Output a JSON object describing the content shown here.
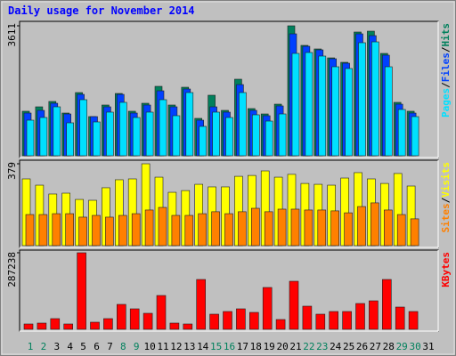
{
  "title": "Daily usage for November 2014",
  "chart_data": [
    {
      "type": "bar",
      "ylim": [
        0,
        3611
      ],
      "yticks": [
        3611
      ],
      "series": [
        {
          "name": "Hits",
          "color": "#00805c",
          "values": [
            1237,
            1360,
            1509,
            1187,
            1756,
            1088,
            1410,
            1731,
            1237,
            1459,
            1929,
            1410,
            1904,
            1039,
            1682,
            1261,
            2127,
            1311,
            1162,
            1434,
            3611,
            3067,
            2968,
            2720,
            2597,
            3438,
            3462,
            2844,
            1484,
            1237,
            null
          ]
        },
        {
          "name": "Files",
          "color": "#0040ff",
          "values": [
            1187,
            1261,
            1459,
            1162,
            1706,
            1088,
            1360,
            1706,
            1187,
            1410,
            1805,
            1360,
            1855,
            989,
            1360,
            1212,
            1978,
            1261,
            1113,
            1385,
            3388,
            3042,
            2943,
            2696,
            2572,
            3388,
            3339,
            2795,
            1434,
            1187,
            null
          ]
        },
        {
          "name": "Pages",
          "color": "#00e0ff",
          "values": [
            989,
            1063,
            1360,
            915,
            1558,
            940,
            1212,
            1484,
            1063,
            1212,
            1558,
            1113,
            1756,
            816,
            1212,
            1063,
            1756,
            1138,
            964,
            1162,
            2844,
            2869,
            2770,
            2473,
            2424,
            3141,
            3165,
            2473,
            1286,
            1088,
            null
          ]
        }
      ]
    },
    {
      "type": "bar",
      "ylim": [
        0,
        379
      ],
      "yticks": [
        379
      ],
      "series": [
        {
          "name": "Visits",
          "color": "#ffff00",
          "values": [
            309,
            280,
            239,
            243,
            214,
            210,
            268,
            305,
            309,
            379,
            317,
            247,
            255,
            284,
            272,
            272,
            321,
            325,
            346,
            317,
            330,
            288,
            284,
            280,
            313,
            338,
            309,
            288,
            334,
            276,
            null
          ]
        },
        {
          "name": "Sites",
          "color": "#ff8000",
          "values": [
            144,
            144,
            148,
            148,
            132,
            140,
            132,
            140,
            148,
            165,
            177,
            140,
            140,
            148,
            157,
            148,
            157,
            173,
            157,
            169,
            169,
            165,
            165,
            161,
            152,
            181,
            198,
            165,
            144,
            124,
            null
          ]
        }
      ]
    },
    {
      "type": "bar",
      "ylim": [
        0,
        287238
      ],
      "yticks": [
        287238
      ],
      "categories": [
        1,
        2,
        3,
        4,
        5,
        6,
        7,
        8,
        9,
        10,
        11,
        12,
        13,
        14,
        15,
        16,
        17,
        18,
        19,
        20,
        21,
        22,
        23,
        24,
        25,
        26,
        27,
        28,
        29,
        30,
        31
      ],
      "category_colors": [
        "#00805c",
        "#00805c",
        "#000000",
        "#000000",
        "#000000",
        "#000000",
        "#000000",
        "#00805c",
        "#00805c",
        "#000000",
        "#000000",
        "#000000",
        "#000000",
        "#000000",
        "#00805c",
        "#00805c",
        "#000000",
        "#000000",
        "#000000",
        "#000000",
        "#000000",
        "#00805c",
        "#00805c",
        "#000000",
        "#000000",
        "#000000",
        "#000000",
        "#000000",
        "#00805c",
        "#00805c",
        "#000000"
      ],
      "series": [
        {
          "name": "KBytes",
          "color": "#ff0000",
          "values": [
            20040,
            23380,
            40080,
            20040,
            287238,
            26720,
            40080,
            93520,
            76820,
            60120,
            126920,
            23380,
            20040,
            187040,
            56780,
            66800,
            76820,
            63460,
            156980,
            36740,
            180360,
            86840,
            56780,
            66800,
            66800,
            96860,
            106880,
            187040,
            83500,
            66800,
            null
          ]
        }
      ]
    }
  ]
}
